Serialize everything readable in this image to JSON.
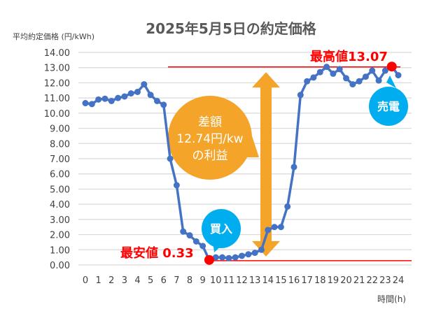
{
  "chart_data": {
    "type": "line",
    "title": "2025年5月5日の約定価格",
    "ylabel": "平均約定価格 (円/kWh)",
    "xlabel": "時間(h)",
    "ylim": [
      0,
      14
    ],
    "xlim": [
      0,
      24
    ],
    "grid": true,
    "yticks": [
      "0.00",
      "1.00",
      "2.00",
      "3.00",
      "4.00",
      "5.00",
      "6.00",
      "7.00",
      "8.00",
      "9.00",
      "10.00",
      "11.00",
      "12.00",
      "13.00",
      "14.00"
    ],
    "xticks": [
      "0",
      "1",
      "2",
      "3",
      "4",
      "5",
      "6",
      "7",
      "8",
      "9",
      "10",
      "11",
      "12",
      "13",
      "14",
      "15",
      "16",
      "17",
      "18",
      "19",
      "20",
      "21",
      "22",
      "23",
      "24"
    ],
    "series": [
      {
        "name": "約定価格",
        "color": "#4472C4",
        "x": [
          0,
          0.5,
          1,
          1.5,
          2,
          2.5,
          3,
          3.5,
          4,
          4.5,
          5,
          5.5,
          6,
          6.5,
          7,
          7.5,
          8,
          8.5,
          9,
          9.5,
          10,
          10.5,
          11,
          11.5,
          12,
          12.5,
          13,
          13.5,
          14,
          14.5,
          15,
          15.5,
          16,
          16.5,
          17,
          17.5,
          18,
          18.5,
          19,
          19.5,
          20,
          20.5,
          21,
          21.5,
          22,
          22.5,
          23,
          23.5,
          24
        ],
        "values": [
          10.66,
          10.6,
          10.9,
          10.95,
          10.8,
          11.0,
          11.1,
          11.3,
          11.4,
          11.9,
          11.2,
          10.8,
          10.55,
          7.0,
          5.25,
          2.2,
          1.95,
          1.55,
          1.25,
          0.33,
          0.5,
          0.5,
          0.45,
          0.5,
          0.6,
          0.7,
          0.8,
          1.0,
          2.3,
          2.5,
          2.5,
          3.85,
          6.45,
          11.2,
          12.1,
          12.35,
          12.7,
          13.05,
          12.6,
          12.9,
          12.3,
          11.9,
          12.1,
          12.4,
          12.8,
          12.15,
          12.8,
          13.07,
          12.5
        ]
      }
    ],
    "annotations": {
      "max_label": "最高値13.07",
      "max_value": 13.07,
      "max_x": 23.5,
      "min_label": "最安値 0.33",
      "min_value": 0.33,
      "min_x": 9.5,
      "diff_line1": "差額",
      "diff_line2": "12.74円/kw",
      "diff_line3": "の利益",
      "buy_label": "買入",
      "sell_label": "売電",
      "red": "#FF0000",
      "orange": "#F5A42A",
      "cyan": "#00AEEF"
    }
  }
}
